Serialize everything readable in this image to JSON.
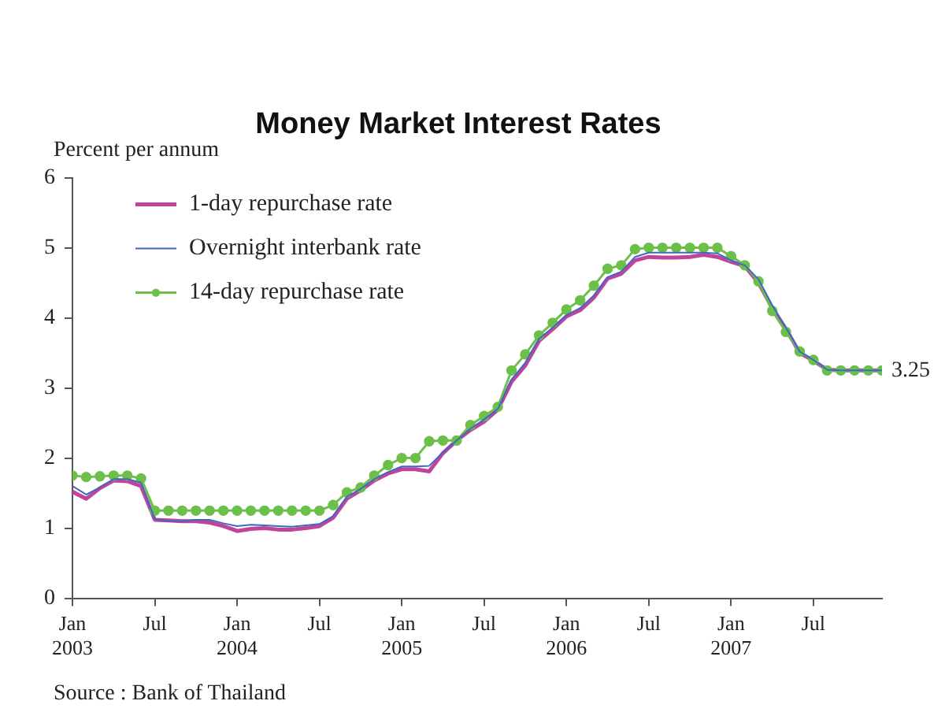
{
  "chart_data": {
    "type": "line",
    "title": "Money Market Interest Rates",
    "ylabel": "Percent per annum",
    "x": [
      "2003-01",
      "2003-02",
      "2003-03",
      "2003-04",
      "2003-05",
      "2003-06",
      "2003-07",
      "2003-08",
      "2003-09",
      "2003-10",
      "2003-11",
      "2003-12",
      "2004-01",
      "2004-02",
      "2004-03",
      "2004-04",
      "2004-05",
      "2004-06",
      "2004-07",
      "2004-08",
      "2004-09",
      "2004-10",
      "2004-11",
      "2004-12",
      "2005-01",
      "2005-02",
      "2005-03",
      "2005-04",
      "2005-05",
      "2005-06",
      "2005-07",
      "2005-08",
      "2005-09",
      "2005-10",
      "2005-11",
      "2005-12",
      "2006-01",
      "2006-02",
      "2006-03",
      "2006-04",
      "2006-05",
      "2006-06",
      "2006-07",
      "2006-08",
      "2006-09",
      "2006-10",
      "2006-11",
      "2006-12",
      "2007-01",
      "2007-02",
      "2007-03",
      "2007-04",
      "2007-05",
      "2007-06",
      "2007-07",
      "2007-08",
      "2007-09",
      "2007-10",
      "2007-11",
      "2007-12"
    ],
    "series": [
      {
        "name": "1-day repurchase rate",
        "color": "#c0449a",
        "marker": "none",
        "values": [
          1.52,
          1.42,
          1.57,
          1.68,
          1.67,
          1.6,
          1.12,
          1.11,
          1.1,
          1.1,
          1.08,
          1.03,
          0.96,
          0.99,
          1.0,
          0.98,
          0.98,
          1.0,
          1.03,
          1.15,
          1.42,
          1.54,
          1.68,
          1.78,
          1.84,
          1.84,
          1.81,
          2.07,
          2.25,
          2.4,
          2.52,
          2.69,
          3.09,
          3.32,
          3.67,
          3.84,
          4.02,
          4.11,
          4.29,
          4.56,
          4.63,
          4.82,
          4.87,
          4.86,
          4.86,
          4.87,
          4.9,
          4.87,
          4.8,
          4.74,
          4.5,
          4.14,
          3.84,
          3.5,
          3.39,
          3.26,
          3.25,
          3.25,
          3.25,
          3.25
        ]
      },
      {
        "name": "Overnight interbank rate",
        "color": "#3f67c6",
        "marker": "none",
        "values": [
          1.6,
          1.48,
          1.58,
          1.7,
          1.7,
          1.65,
          1.13,
          1.1,
          1.1,
          1.12,
          1.12,
          1.07,
          1.03,
          1.05,
          1.04,
          1.03,
          1.02,
          1.04,
          1.06,
          1.17,
          1.45,
          1.56,
          1.7,
          1.8,
          1.88,
          1.88,
          1.89,
          2.08,
          2.25,
          2.42,
          2.55,
          2.7,
          3.12,
          3.36,
          3.7,
          3.86,
          4.04,
          4.14,
          4.32,
          4.58,
          4.66,
          4.87,
          4.93,
          4.93,
          4.93,
          4.93,
          4.93,
          4.92,
          4.82,
          4.75,
          4.55,
          4.18,
          3.86,
          3.52,
          3.4,
          3.26,
          3.25,
          3.25,
          3.25,
          3.25
        ]
      },
      {
        "name": "14-day repurchase rate",
        "color": "#6cc04a",
        "marker": "circle",
        "values": [
          1.75,
          1.73,
          1.74,
          1.75,
          1.75,
          1.71,
          1.25,
          1.25,
          1.25,
          1.25,
          1.25,
          1.25,
          1.25,
          1.25,
          1.25,
          1.25,
          1.25,
          1.25,
          1.25,
          1.33,
          1.51,
          1.58,
          1.75,
          1.9,
          2.0,
          2.0,
          2.24,
          2.25,
          2.25,
          2.47,
          2.6,
          2.73,
          3.25,
          3.48,
          3.75,
          3.93,
          4.12,
          4.25,
          4.46,
          4.7,
          4.75,
          4.98,
          5.0,
          5.0,
          5.0,
          5.0,
          5.0,
          5.0,
          4.88,
          4.75,
          4.52,
          4.1,
          3.8,
          3.52,
          3.4,
          3.25,
          3.25,
          3.25,
          3.25,
          3.25
        ]
      }
    ],
    "xlim": [
      "2003-01",
      "2007-12"
    ],
    "xticks": [
      {
        "value": "2003-01",
        "label": "Jan\n2003"
      },
      {
        "value": "2003-07",
        "label": "Jul"
      },
      {
        "value": "2004-01",
        "label": "Jan\n2004"
      },
      {
        "value": "2004-07",
        "label": "Jul"
      },
      {
        "value": "2005-01",
        "label": "Jan\n2005"
      },
      {
        "value": "2005-07",
        "label": "Jul"
      },
      {
        "value": "2006-01",
        "label": "Jan\n2006"
      },
      {
        "value": "2006-07",
        "label": "Jul"
      },
      {
        "value": "2007-01",
        "label": "Jan\n2007"
      },
      {
        "value": "2007-07",
        "label": "Jul"
      }
    ],
    "ylim": [
      0,
      6
    ],
    "yticks": [
      0,
      1,
      2,
      3,
      4,
      5,
      6
    ],
    "legend": "top left",
    "annotations": [
      "Source : Bank of Thailand",
      {
        "text": "3.25",
        "x": "2007-12",
        "y": 3.25
      }
    ]
  }
}
